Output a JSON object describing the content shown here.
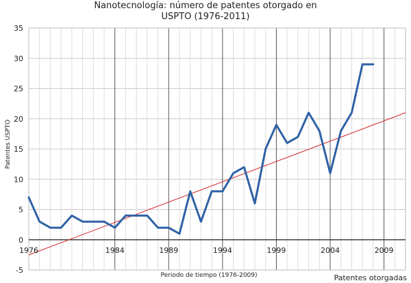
{
  "chart_data": {
    "type": "line",
    "title": "Nanotecnología: número de patentes otorgado en USPTO (1976-2011)",
    "title_lines": [
      "Nanotecnología: número de patentes otorgado en",
      "USPTO (1976-2011)"
    ],
    "xlabel": "Periodo de tiempo (1976-2009)",
    "ylabel": "Patentes USPTO",
    "legend": "Patentes otorgadas",
    "legend_position": "bottom-right",
    "xlim": [
      1976,
      2011
    ],
    "ylim": [
      -5,
      35
    ],
    "x_ticks": [
      1976,
      1984,
      1989,
      1994,
      1999,
      2004,
      2009
    ],
    "x_tick_labels": [
      "1976",
      "1984",
      "1989",
      "1994",
      "1999",
      "2004",
      "2009"
    ],
    "y_ticks": [
      -5,
      0,
      5,
      10,
      15,
      20,
      25,
      30,
      35
    ],
    "y_tick_labels": [
      "-5",
      "0",
      "5",
      "10",
      "15",
      "20",
      "25",
      "30",
      "35"
    ],
    "grid": true,
    "series": [
      {
        "name": "Patentes otorgadas",
        "color": "#2e62a6",
        "x": [
          1976,
          1977,
          1978,
          1979,
          1980,
          1981,
          1982,
          1983,
          1984,
          1985,
          1986,
          1987,
          1988,
          1989,
          1990,
          1991,
          1992,
          1993,
          1994,
          1995,
          1996,
          1997,
          1998,
          1999,
          2000,
          2001,
          2002,
          2003,
          2004,
          2005,
          2006,
          2007,
          2008,
          2009,
          2010,
          2011
        ],
        "values": [
          7,
          3,
          2,
          2,
          4,
          3,
          3,
          3,
          2,
          4,
          4,
          4,
          2,
          2,
          1,
          8,
          3,
          8,
          8,
          11,
          12,
          6,
          15,
          19,
          16,
          17,
          21,
          18,
          11,
          18,
          21,
          29,
          29,
          null,
          null,
          null
        ]
      }
    ],
    "trendline": {
      "color": "#d62728",
      "x": [
        1976,
        2011
      ],
      "values": [
        -2.5,
        21
      ]
    }
  }
}
